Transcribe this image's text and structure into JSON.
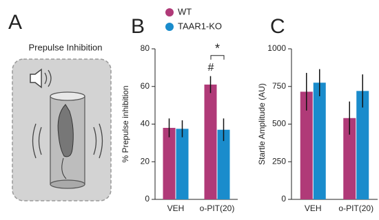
{
  "diagram": {
    "label": "A",
    "title": "Prepulse Inhibition"
  },
  "chart_data": [
    {
      "type": "bar",
      "panel": "B",
      "ylabel": "% Prepulse inhibition",
      "categories": [
        "VEH",
        "o-PIT(20)"
      ],
      "series": [
        {
          "name": "WT",
          "color": "#b03a78",
          "values": [
            38,
            61
          ],
          "errors": [
            5,
            4.5
          ]
        },
        {
          "name": "TAAR1-KO",
          "color": "#1a8ccc",
          "values": [
            37.5,
            37
          ],
          "errors": [
            4.5,
            6
          ]
        }
      ],
      "ylim": [
        0,
        80
      ],
      "yticks": [
        0,
        20,
        40,
        60,
        80
      ],
      "annotations": [
        {
          "text": "#"
        },
        {
          "text": "*"
        }
      ]
    },
    {
      "type": "bar",
      "panel": "C",
      "ylabel": "Startle Amplitude (AU)",
      "categories": [
        "VEH",
        "o-PIT(20)"
      ],
      "series": [
        {
          "color": "#b03a78",
          "values": [
            715,
            540
          ],
          "errors": [
            125,
            110
          ]
        },
        {
          "color": "#1a8ccc",
          "values": [
            775,
            720
          ],
          "errors": [
            90,
            110
          ]
        }
      ],
      "ylim": [
        0,
        1000
      ],
      "yticks": [
        0,
        250,
        500,
        750,
        1000
      ]
    }
  ]
}
